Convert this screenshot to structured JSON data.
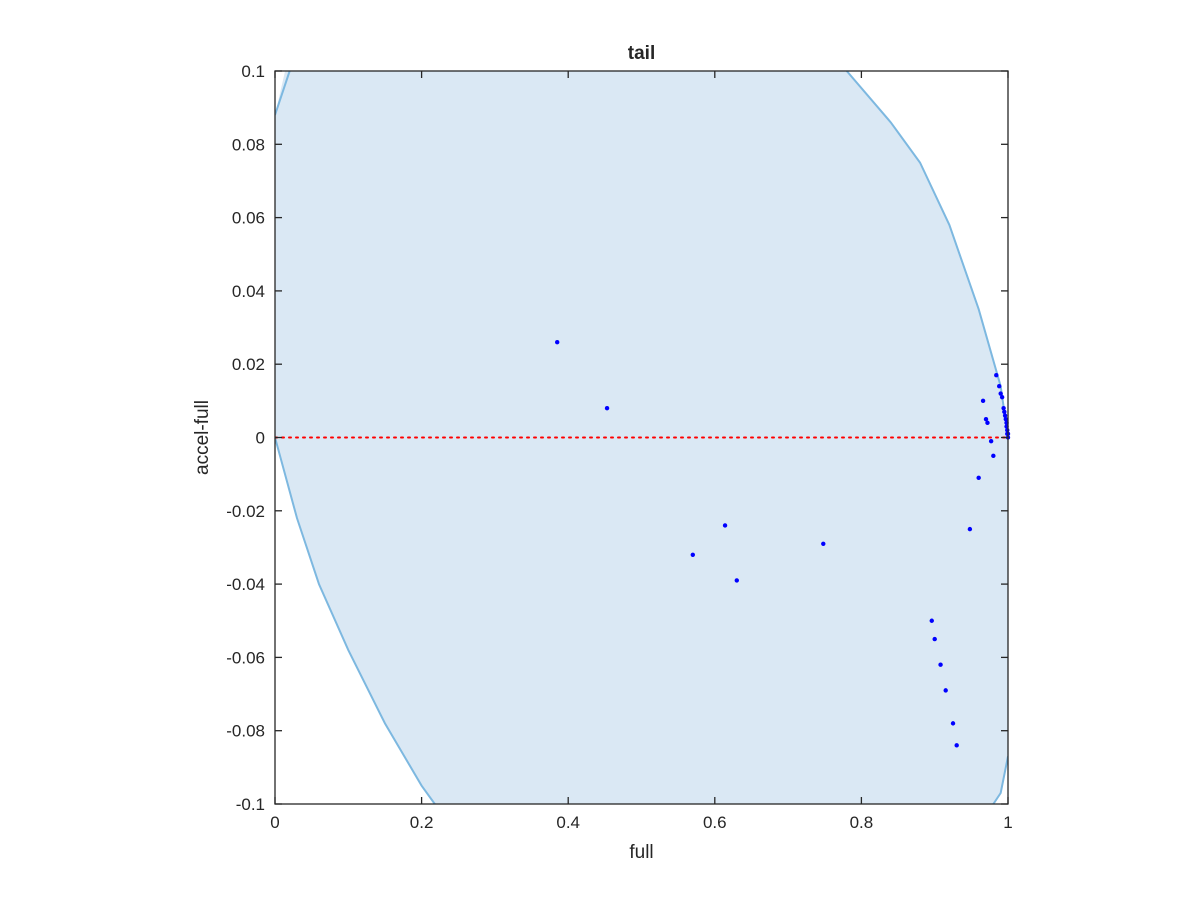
{
  "chart_data": {
    "type": "scatter",
    "title": "tail",
    "xlabel": "full",
    "ylabel": "accel-full",
    "xlim": [
      0,
      1
    ],
    "ylim": [
      -0.1,
      0.1
    ],
    "xticks": [
      0,
      0.2,
      0.4,
      0.6,
      0.8,
      1
    ],
    "xtick_labels": [
      "0",
      "0.2",
      "0.4",
      "0.6",
      "0.8",
      "1"
    ],
    "yticks": [
      -0.1,
      -0.08,
      -0.06,
      -0.04,
      -0.02,
      0,
      0.02,
      0.04,
      0.06,
      0.08,
      0.1
    ],
    "ytick_labels": [
      "-0.1",
      "-0.08",
      "-0.06",
      "-0.04",
      "-0.02",
      "0",
      "0.02",
      "0.04",
      "0.06",
      "0.08",
      "0.1"
    ],
    "grid": false,
    "reference_line": {
      "y": 0,
      "style": "dotted",
      "color": "#ff0000"
    },
    "region": {
      "fill_color": "#dae8f4",
      "edge_color": "#7db8e0",
      "left_boundary": [
        [
          0.0,
          0.088
        ],
        [
          0.02,
          0.1
        ],
        [
          0.0,
          0.0
        ],
        [
          0.03,
          -0.022
        ],
        [
          0.06,
          -0.04
        ],
        [
          0.1,
          -0.058
        ],
        [
          0.15,
          -0.078
        ],
        [
          0.2,
          -0.095
        ],
        [
          0.218,
          -0.1
        ]
      ],
      "right_boundary": [
        [
          0.78,
          0.1
        ],
        [
          0.84,
          0.086
        ],
        [
          0.88,
          0.075
        ],
        [
          0.92,
          0.058
        ],
        [
          0.96,
          0.035
        ],
        [
          0.99,
          0.014
        ],
        [
          1.0,
          0.0
        ]
      ],
      "right_bottom_boundary": [
        [
          0.98,
          -0.1
        ],
        [
          0.99,
          -0.097
        ],
        [
          1.0,
          -0.087
        ]
      ]
    },
    "marker_color": "#0000ff",
    "points": [
      [
        0.385,
        0.026
      ],
      [
        0.453,
        0.008
      ],
      [
        0.57,
        -0.032
      ],
      [
        0.614,
        -0.024
      ],
      [
        0.63,
        -0.039
      ],
      [
        0.748,
        -0.029
      ],
      [
        0.896,
        -0.05
      ],
      [
        0.9,
        -0.055
      ],
      [
        0.908,
        -0.062
      ],
      [
        0.915,
        -0.069
      ],
      [
        0.925,
        -0.078
      ],
      [
        0.93,
        -0.084
      ],
      [
        0.948,
        -0.025
      ],
      [
        0.96,
        -0.011
      ],
      [
        0.966,
        0.01
      ],
      [
        0.97,
        0.005
      ],
      [
        0.972,
        0.004
      ],
      [
        0.977,
        -0.001
      ],
      [
        0.98,
        -0.005
      ],
      [
        0.984,
        0.017
      ],
      [
        0.988,
        0.014
      ],
      [
        0.99,
        0.012
      ],
      [
        0.992,
        0.011
      ],
      [
        0.994,
        0.008
      ],
      [
        0.995,
        0.007
      ],
      [
        0.996,
        0.006
      ],
      [
        0.997,
        0.005
      ],
      [
        0.998,
        0.004
      ],
      [
        0.998,
        0.003
      ],
      [
        0.999,
        0.002
      ],
      [
        0.999,
        0.001
      ],
      [
        1.0,
        0.001
      ],
      [
        1.0,
        0.0
      ]
    ]
  }
}
